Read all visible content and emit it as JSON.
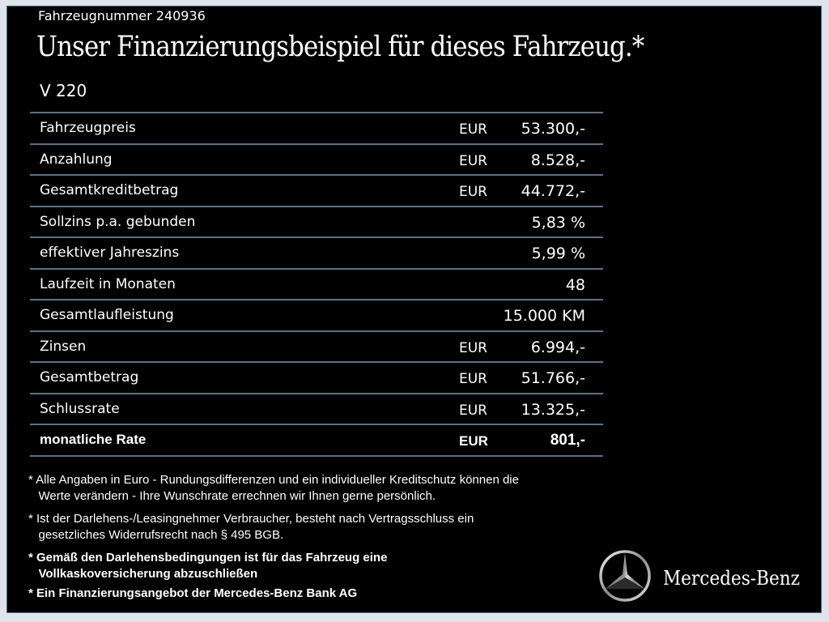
{
  "vehicle_number": "Fahrzeugnummer 240936",
  "title": "Unser Finanzierungsbeispiel für dieses Fahrzeug.*",
  "model": "V 220",
  "rows": [
    {
      "label": "Fahrzeugpreis",
      "currency": "EUR",
      "value": "53.300,-"
    },
    {
      "label": "Anzahlung",
      "currency": "EUR",
      "value": "8.528,-"
    },
    {
      "label": "Gesamtkreditbetrag",
      "currency": "EUR",
      "value": "44.772,-"
    },
    {
      "label": "Sollzins p.a. gebunden",
      "currency": "",
      "value": "5,83 %"
    },
    {
      "label": "effektiver Jahreszins",
      "currency": "",
      "value": "5,99 %"
    },
    {
      "label": "Laufzeit in Monaten",
      "currency": "",
      "value": "48"
    },
    {
      "label": "Gesamtlaufleistung",
      "currency": "",
      "value": "15.000 KM"
    },
    {
      "label": "Zinsen",
      "currency": "EUR",
      "value": "6.994,-"
    },
    {
      "label": "Gesamtbetrag",
      "currency": "EUR",
      "value": "51.766,-"
    },
    {
      "label": "Schlussrate",
      "currency": "EUR",
      "value": "13.325,-"
    },
    {
      "label": "monatliche Rate",
      "currency": "EUR",
      "value": "801,-"
    }
  ],
  "notes": [
    {
      "line1": "* Alle Angaben in Euro - Rundungsdifferenzen und ein individueller Kreditschutz können die",
      "line2": "   Werte verändern - Ihre Wunschrate errechnen wir Ihnen gerne persönlich."
    },
    {
      "line1": "* Ist der Darlehens-/Leasingnehmer Verbraucher, besteht nach Vertragsschluss ein",
      "line2": "   gesetzliches Widerrufsrecht nach § 495 BGB."
    },
    {
      "line1": "* Gemäß den Darlehensbedingungen ist für das Fahrzeug eine",
      "line2": "   Vollkaskoversicherung abzuschließen"
    },
    {
      "line1": "* Ein Finanzierungsangebot der Mercedes-Benz Bank AG",
      "line2": ""
    }
  ],
  "brand": "Mercedes-Benz"
}
